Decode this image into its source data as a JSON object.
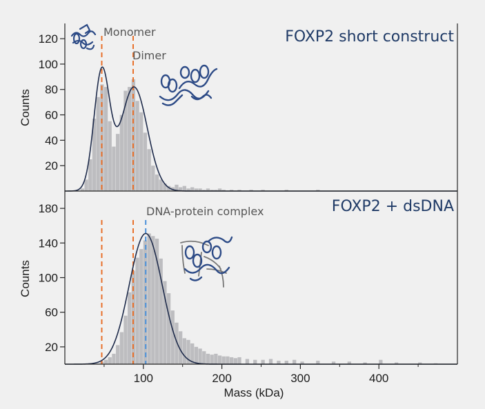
{
  "colors": {
    "background": "#f0f0f0",
    "histogram_bar": "#bdbdc0",
    "fit_curve": "#1d2a4a",
    "monomer_dimer_marker": "#e8702a",
    "complex_marker": "#4a90d9",
    "title_text": "#1f3a66",
    "protein_structure": "#2c4a86"
  },
  "shared_axes": {
    "xlabel": "Mass (kDa)",
    "ylabel": "Counts",
    "xlim": [
      0,
      500
    ],
    "xticks": [
      "100",
      "200",
      "300",
      "400"
    ],
    "xtick_values": [
      100,
      200,
      300,
      400
    ]
  },
  "icons": [
    "monomer-structure-icon",
    "dimer-structure-icon",
    "dna-protein-complex-structure-icon"
  ],
  "chart_data": [
    {
      "type": "bar",
      "title": "FOXP2 short construct",
      "xlabel": "",
      "ylabel": "Counts",
      "xlim": [
        0,
        500
      ],
      "ylim": [
        0,
        132
      ],
      "yticks": [
        "20",
        "40",
        "60",
        "80",
        "100",
        "120"
      ],
      "ytick_values": [
        20,
        40,
        60,
        80,
        100,
        120
      ],
      "bin_width": 5,
      "bins_start": [
        20,
        25,
        30,
        35,
        40,
        45,
        50,
        55,
        60,
        65,
        70,
        75,
        80,
        85,
        90,
        95,
        100,
        105,
        110,
        115,
        120,
        125,
        130,
        135,
        140,
        145,
        150,
        155,
        160,
        165,
        170,
        175,
        180,
        185,
        190,
        195,
        200,
        210,
        220,
        235,
        250,
        280,
        320
      ],
      "counts": [
        2,
        9,
        25,
        57,
        74,
        84,
        82,
        55,
        35,
        45,
        60,
        79,
        82,
        88,
        71,
        62,
        46,
        33,
        20,
        13,
        9,
        6,
        4,
        3,
        5,
        3,
        4,
        2,
        3,
        2,
        2,
        1,
        2,
        1,
        1,
        2,
        1,
        1,
        1,
        1,
        1,
        1,
        1
      ],
      "fit": {
        "components": [
          {
            "mu": 47,
            "sigma": 10,
            "amplitude": 93
          },
          {
            "mu": 88,
            "sigma": 17,
            "amplitude": 82
          }
        ]
      },
      "markers": [
        {
          "x": 47,
          "label": "Monomer",
          "color": "#e8702a"
        },
        {
          "x": 87,
          "label": "Dimer",
          "color": "#e8702a"
        }
      ]
    },
    {
      "type": "bar",
      "title": "FOXP2 + dsDNA",
      "xlabel": "Mass (kDa)",
      "ylabel": "Counts",
      "xlim": [
        0,
        500
      ],
      "ylim": [
        0,
        200
      ],
      "yticks": [
        "20",
        "60",
        "100",
        "140",
        "180"
      ],
      "ytick_values": [
        20,
        60,
        100,
        140,
        180
      ],
      "bin_width": 5,
      "bins_start": [
        40,
        45,
        50,
        55,
        60,
        65,
        70,
        75,
        80,
        85,
        90,
        95,
        100,
        105,
        110,
        115,
        120,
        125,
        130,
        135,
        140,
        145,
        150,
        155,
        160,
        165,
        170,
        175,
        180,
        185,
        190,
        195,
        200,
        205,
        210,
        215,
        220,
        230,
        240,
        250,
        260,
        270,
        280,
        290,
        300,
        320,
        340,
        360,
        380,
        400,
        420,
        450,
        470
      ],
      "counts": [
        1,
        3,
        5,
        8,
        12,
        22,
        37,
        56,
        83,
        108,
        123,
        133,
        143,
        151,
        148,
        145,
        122,
        96,
        82,
        62,
        48,
        38,
        30,
        28,
        24,
        20,
        18,
        15,
        12,
        11,
        12,
        10,
        9,
        9,
        8,
        7,
        8,
        6,
        5,
        5,
        6,
        4,
        4,
        5,
        3,
        4,
        3,
        3,
        2,
        5,
        2,
        2,
        1
      ],
      "fit": {
        "components": [
          {
            "mu": 103,
            "sigma": 21,
            "amplitude": 151
          }
        ]
      },
      "markers": [
        {
          "x": 47,
          "label": "",
          "color": "#e8702a"
        },
        {
          "x": 87,
          "label": "",
          "color": "#e8702a"
        },
        {
          "x": 103,
          "label": "DNA-protein complex",
          "color": "#4a90d9"
        }
      ]
    }
  ]
}
